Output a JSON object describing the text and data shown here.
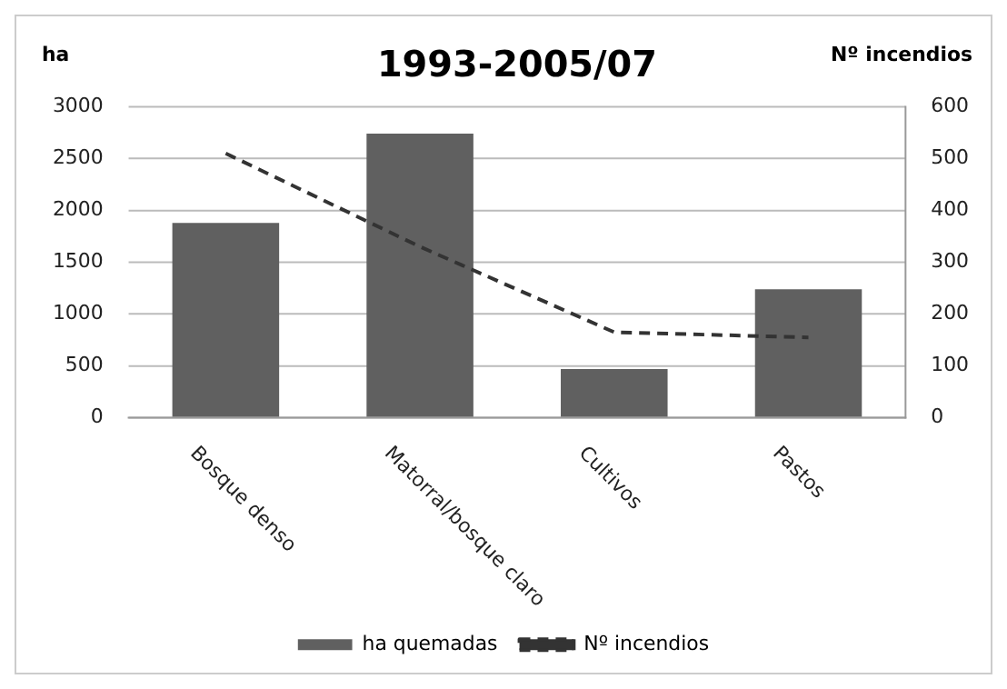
{
  "chart_data": {
    "type": "bar",
    "title": "1993-2005/07",
    "ylabel": "ha",
    "y2label": "Nº incendios",
    "categories": [
      "Bosque denso",
      "Matorral/bosque claro",
      "Cultivos",
      "Pastos"
    ],
    "series": [
      {
        "name": "ha quemadas",
        "color": "#606060",
        "values": [
          1880,
          2740,
          470,
          1240
        ]
      },
      {
        "name": "Nº incendios",
        "type": "line",
        "axis": "y2",
        "color": "#333333",
        "line_style": "dashed",
        "marker": "none",
        "values": [
          510,
          330,
          165,
          155
        ]
      }
    ],
    "ylim": [
      0,
      3000
    ],
    "yticks": [
      0,
      500,
      1000,
      1500,
      2000,
      2500,
      3000
    ],
    "y2lim": [
      0,
      600
    ],
    "y2ticks": [
      0,
      100,
      200,
      300,
      400,
      500,
      600
    ],
    "grid": "y",
    "legend": "bottom"
  }
}
